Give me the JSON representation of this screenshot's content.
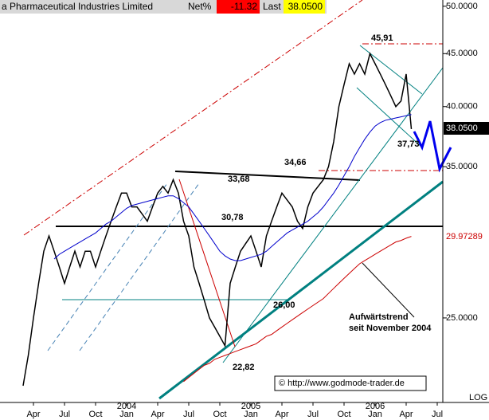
{
  "header": {
    "name": "a Pharmaceutical Industries Limited",
    "net_label": "Net%",
    "net_value": "-11.32",
    "last_label": "Last",
    "last_value": "38.0500"
  },
  "chart_data": {
    "type": "line",
    "log_scale": true,
    "categories": [
      null,
      null,
      "Apr",
      null,
      null,
      null,
      null,
      null,
      "Jul",
      null,
      null,
      null,
      null,
      null,
      "Oct",
      null,
      null,
      null,
      null,
      null,
      "Jan",
      null,
      null,
      null,
      null,
      null,
      "Apr",
      null,
      null,
      null,
      null,
      null,
      "Jul",
      null,
      null,
      null,
      null,
      null,
      "Oct",
      null,
      null,
      null,
      null,
      null,
      "Jan",
      null,
      null,
      null,
      null,
      null,
      "Apr",
      null,
      null,
      null,
      null,
      null,
      "Jul",
      null,
      null,
      null,
      null,
      null,
      "Oct",
      null,
      null,
      null,
      null,
      null,
      "Jan",
      null,
      null,
      null,
      null,
      null,
      "Apr",
      null,
      null,
      null,
      null,
      null,
      "Jul",
      null
    ],
    "x_years": [
      "2004",
      "2005",
      "2006"
    ],
    "series": [
      {
        "color": "#000000",
        "values": [
          21.5,
          23,
          25,
          27,
          29,
          30,
          29,
          28,
          27,
          28,
          29,
          28,
          29,
          29,
          28,
          29,
          30,
          31,
          32,
          33,
          33,
          32,
          32,
          31.5,
          31,
          32,
          33,
          33.5,
          33,
          34,
          33,
          31,
          30,
          28,
          27,
          26,
          25,
          24.5,
          24,
          23.5,
          27,
          28,
          29,
          29.5,
          30,
          29,
          28,
          30,
          31,
          32,
          33,
          32.5,
          32,
          31,
          30.5,
          32,
          33,
          33.5,
          34,
          35,
          37,
          40,
          42,
          44,
          43,
          44,
          43,
          45,
          44,
          43,
          42,
          41,
          40,
          40.5,
          43,
          38.05,
          null,
          null,
          null,
          null,
          null,
          null
        ]
      },
      {
        "color": "#0000cc",
        "values": [
          null,
          null,
          null,
          null,
          null,
          null,
          28.5,
          28.8,
          29,
          29.2,
          29.4,
          29.6,
          29.8,
          30,
          30.2,
          30.5,
          30.8,
          31,
          31.3,
          31.6,
          31.9,
          32.1,
          32.2,
          32.3,
          32.4,
          32.5,
          32.6,
          32.7,
          32.8,
          32.8,
          32.6,
          32.3,
          32,
          31.5,
          31,
          30.5,
          30,
          29.5,
          29,
          28.7,
          28.5,
          28.4,
          28.4,
          28.5,
          28.6,
          28.7,
          28.8,
          29,
          29.3,
          29.6,
          29.9,
          30.2,
          30.4,
          30.6,
          30.8,
          31,
          31.3,
          31.6,
          32,
          32.5,
          33,
          33.6,
          34.3,
          35,
          35.8,
          36.5,
          37.2,
          37.8,
          38.3,
          38.6,
          38.8,
          38.9,
          39,
          39.1,
          39.2,
          39.3,
          null,
          null,
          null,
          null,
          null,
          null
        ]
      },
      {
        "color": "#cc0000",
        "values": [
          null,
          null,
          null,
          null,
          null,
          null,
          null,
          null,
          null,
          null,
          null,
          null,
          null,
          null,
          null,
          null,
          null,
          null,
          null,
          null,
          null,
          null,
          null,
          null,
          null,
          null,
          null,
          null,
          null,
          null,
          null,
          21.7,
          21.9,
          22.1,
          22.3,
          22.5,
          22.6,
          22.8,
          22.9,
          23,
          23.1,
          23.2,
          23.3,
          23.4,
          23.5,
          23.6,
          23.8,
          24,
          24.1,
          24.3,
          24.5,
          24.7,
          24.9,
          25.1,
          25.3,
          25.5,
          25.7,
          25.9,
          26.1,
          26.4,
          26.7,
          27,
          27.3,
          27.6,
          27.9,
          28.2,
          28.4,
          28.6,
          28.8,
          29,
          29.2,
          29.4,
          29.6,
          29.7,
          29.85,
          29.97,
          null,
          null,
          null,
          null,
          null,
          null
        ]
      }
    ],
    "ylim": [
      20.9,
      50.7
    ],
    "yticks": [
      {
        "value": 25,
        "label": "25.0000"
      },
      {
        "value": 35,
        "label": "35.0000"
      },
      {
        "value": 40,
        "label": "40.0000"
      },
      {
        "value": 45,
        "label": "45.0000"
      },
      {
        "value": 50,
        "label": "50.0000"
      }
    ],
    "last_price_label": "38.0500",
    "ma_label": "29.97289",
    "scale_label": "LOG",
    "annotations": [
      "45,91",
      "37,73",
      "34,66",
      "33,68",
      "30,78",
      "26,00",
      "22,82",
      "Aufwärtstrend",
      "seit November 2004",
      "© http://www.godmode-trader.de"
    ]
  }
}
